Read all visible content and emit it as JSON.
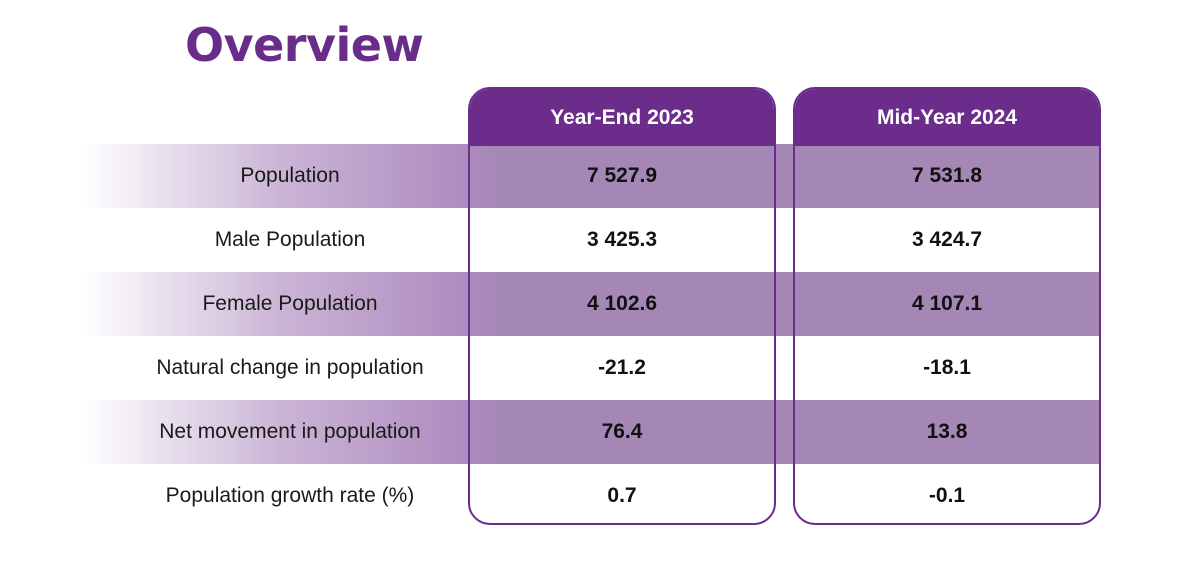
{
  "title": "Overview",
  "chart_data": {
    "type": "table",
    "title": "Overview",
    "columns": [
      "Year-End 2023",
      "Mid-Year 2024"
    ],
    "rows": [
      {
        "label": "Population",
        "values": [
          "7 527.9",
          "7 531.8"
        ]
      },
      {
        "label": "Male Population",
        "values": [
          "3 425.3",
          "3 424.7"
        ]
      },
      {
        "label": "Female Population",
        "values": [
          "4 102.6",
          "4 107.1"
        ]
      },
      {
        "label": "Natural change in population",
        "values": [
          "-21.2",
          "-18.1"
        ]
      },
      {
        "label": "Net movement in population",
        "values": [
          "76.4",
          "13.8"
        ]
      },
      {
        "label": "Population growth rate (%)",
        "values": [
          "0.7",
          "-0.1"
        ]
      }
    ]
  },
  "colors": {
    "accent": "#6b2c8b",
    "shade": "#a587b6",
    "text": "#111111"
  }
}
